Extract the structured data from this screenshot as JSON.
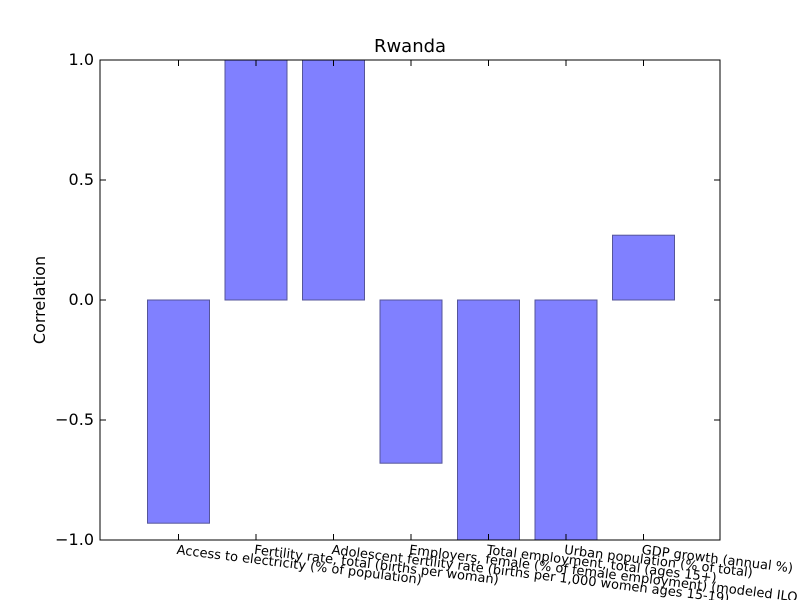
{
  "chart_data": {
    "type": "bar",
    "title": "Rwanda",
    "xlabel": "",
    "ylabel": "Correlation",
    "ylim": [
      -1.0,
      1.0
    ],
    "yticks": [
      1.0,
      0.5,
      0.0,
      -0.5,
      -1.0
    ],
    "ytick_labels": [
      "1.0",
      "0.5",
      "0.0",
      "−0.5",
      "−1.0"
    ],
    "grid": false,
    "categories": [
      "Access to electricity (% of population)",
      "Fertility rate, total (births per woman)",
      "Adolescent fertility rate (births per 1,000 women ages 15-19)",
      "Employers, female (% of female employment) (modeled ILO estimate)",
      "Total employment, total (ages 15+)",
      "Urban population (% of total)",
      "GDP growth (annual %)"
    ],
    "values": [
      -0.93,
      1.0,
      1.0,
      -0.68,
      -1.0,
      -1.0,
      0.27
    ],
    "bar_color": "#8080ff",
    "bar_edge_color": "#555599"
  }
}
